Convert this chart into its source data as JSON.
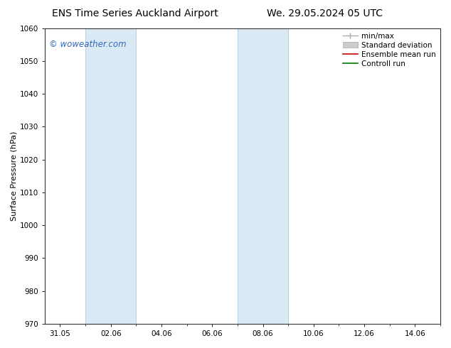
{
  "title_left": "ENS Time Series Auckland Airport",
  "title_right": "We. 29.05.2024 05 UTC",
  "ylabel": "Surface Pressure (hPa)",
  "ylim": [
    970,
    1060
  ],
  "yticks": [
    970,
    980,
    990,
    1000,
    1010,
    1020,
    1030,
    1040,
    1050,
    1060
  ],
  "xtick_labels": [
    "31.05",
    "02.06",
    "04.06",
    "06.06",
    "08.06",
    "10.06",
    "12.06",
    "14.06"
  ],
  "xtick_positions": [
    0,
    2,
    4,
    6,
    8,
    10,
    12,
    14
  ],
  "xlim_min": -0.6,
  "xlim_max": 15.0,
  "shaded_regions": [
    {
      "xmin": 1.0,
      "xmax": 3.0
    },
    {
      "xmin": 7.0,
      "xmax": 9.0
    }
  ],
  "shaded_color": "#daeaf5",
  "shaded_edge_color": "#b8d0e8",
  "watermark_text": "© woweather.com",
  "watermark_color": "#3366bb",
  "legend_items": [
    {
      "label": "min/max",
      "color": "#aaaaaa",
      "lw": 1.0
    },
    {
      "label": "Standard deviation",
      "color": "#cccccc",
      "lw": 5
    },
    {
      "label": "Ensemble mean run",
      "color": "#cc0000",
      "lw": 1.2
    },
    {
      "label": "Controll run",
      "color": "#007700",
      "lw": 1.2
    }
  ],
  "background_color": "#ffffff",
  "title_fontsize": 10,
  "ylabel_fontsize": 8,
  "tick_fontsize": 7.5,
  "watermark_fontsize": 8.5,
  "legend_fontsize": 7.5,
  "fig_width": 6.34,
  "fig_height": 4.9,
  "dpi": 100
}
